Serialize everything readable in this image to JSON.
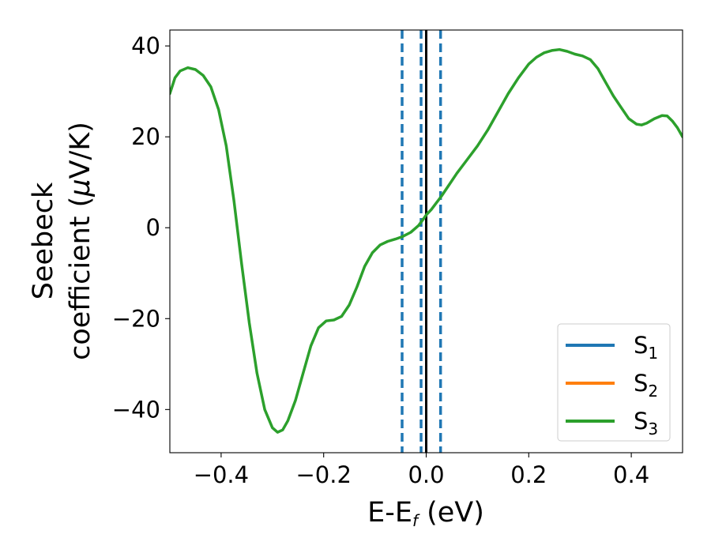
{
  "chart_data": {
    "type": "line",
    "xlabel": "E-E",
    "xlabel_sub": "f",
    "xlabel_unit": " (eV)",
    "ylabel_line1": "Seebeck",
    "ylabel_line2_prefix": "coefficient  (",
    "ylabel_mu": "μ",
    "ylabel_line2_suffix": "V/K)",
    "xlim": [
      -0.5,
      0.5
    ],
    "ylim": [
      -49.5,
      43.5
    ],
    "x_ticks": [
      -0.4,
      -0.2,
      0.0,
      0.2,
      0.4
    ],
    "x_tick_labels": [
      "−0.4",
      "−0.2",
      "0.0",
      "0.2",
      "0.4"
    ],
    "y_ticks": [
      40,
      20,
      0,
      -20,
      -40
    ],
    "y_tick_labels": [
      "40",
      "20",
      "0",
      "−20",
      "−40"
    ],
    "vertical_lines": [
      {
        "x": -0.047,
        "style": "dashed",
        "color": "#1f77b4"
      },
      {
        "x": -0.01,
        "style": "dashed",
        "color": "#1f77b4"
      },
      {
        "x": 0.028,
        "style": "dashed",
        "color": "#1f77b4"
      },
      {
        "x": 0.0,
        "style": "solid",
        "color": "#000000"
      }
    ],
    "legend_position": "lower-right",
    "series": [
      {
        "name": "S",
        "sub": "1",
        "color": "#1f77b4",
        "points": []
      },
      {
        "name": "S",
        "sub": "2",
        "color": "#ff7f0e",
        "points": []
      },
      {
        "name": "S",
        "sub": "3",
        "color": "#2ca02c",
        "points": [
          [
            -0.5,
            29.5
          ],
          [
            -0.49,
            33.0
          ],
          [
            -0.48,
            34.5
          ],
          [
            -0.465,
            35.2
          ],
          [
            -0.45,
            34.8
          ],
          [
            -0.435,
            33.5
          ],
          [
            -0.42,
            31.0
          ],
          [
            -0.405,
            26.0
          ],
          [
            -0.39,
            18.0
          ],
          [
            -0.375,
            6.0
          ],
          [
            -0.36,
            -8.0
          ],
          [
            -0.345,
            -21.0
          ],
          [
            -0.33,
            -32.0
          ],
          [
            -0.315,
            -40.0
          ],
          [
            -0.3,
            -44.0
          ],
          [
            -0.29,
            -45.0
          ],
          [
            -0.28,
            -44.5
          ],
          [
            -0.27,
            -42.5
          ],
          [
            -0.255,
            -38.0
          ],
          [
            -0.24,
            -32.0
          ],
          [
            -0.225,
            -26.0
          ],
          [
            -0.21,
            -22.0
          ],
          [
            -0.195,
            -20.5
          ],
          [
            -0.18,
            -20.3
          ],
          [
            -0.165,
            -19.5
          ],
          [
            -0.15,
            -17.0
          ],
          [
            -0.135,
            -13.0
          ],
          [
            -0.12,
            -8.5
          ],
          [
            -0.105,
            -5.5
          ],
          [
            -0.09,
            -3.8
          ],
          [
            -0.075,
            -3.0
          ],
          [
            -0.06,
            -2.5
          ],
          [
            -0.047,
            -2.0
          ],
          [
            -0.03,
            -1.0
          ],
          [
            -0.015,
            0.5
          ],
          [
            -0.005,
            2.0
          ],
          [
            0.0,
            2.8
          ],
          [
            0.01,
            4.0
          ],
          [
            0.02,
            5.5
          ],
          [
            0.03,
            7.0
          ],
          [
            0.045,
            9.5
          ],
          [
            0.06,
            12.0
          ],
          [
            0.08,
            15.0
          ],
          [
            0.1,
            18.0
          ],
          [
            0.12,
            21.5
          ],
          [
            0.14,
            25.5
          ],
          [
            0.16,
            29.5
          ],
          [
            0.18,
            33.0
          ],
          [
            0.2,
            36.0
          ],
          [
            0.215,
            37.5
          ],
          [
            0.23,
            38.5
          ],
          [
            0.245,
            39.0
          ],
          [
            0.26,
            39.2
          ],
          [
            0.275,
            38.8
          ],
          [
            0.29,
            38.2
          ],
          [
            0.305,
            37.8
          ],
          [
            0.32,
            37.0
          ],
          [
            0.335,
            35.0
          ],
          [
            0.35,
            32.0
          ],
          [
            0.365,
            29.0
          ],
          [
            0.38,
            26.5
          ],
          [
            0.395,
            24.0
          ],
          [
            0.41,
            22.8
          ],
          [
            0.42,
            22.6
          ],
          [
            0.43,
            23.0
          ],
          [
            0.445,
            24.0
          ],
          [
            0.46,
            24.7
          ],
          [
            0.47,
            24.6
          ],
          [
            0.48,
            23.5
          ],
          [
            0.49,
            22.0
          ],
          [
            0.5,
            20.0
          ]
        ]
      }
    ]
  }
}
